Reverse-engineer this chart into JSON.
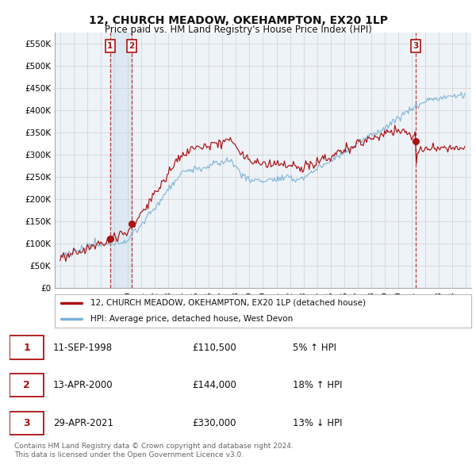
{
  "title": "12, CHURCH MEADOW, OKEHAMPTON, EX20 1LP",
  "subtitle": "Price paid vs. HM Land Registry's House Price Index (HPI)",
  "ylabel_ticks": [
    "£0",
    "£50K",
    "£100K",
    "£150K",
    "£200K",
    "£250K",
    "£300K",
    "£350K",
    "£400K",
    "£450K",
    "£500K",
    "£550K"
  ],
  "ytick_values": [
    0,
    50000,
    100000,
    150000,
    200000,
    250000,
    300000,
    350000,
    400000,
    450000,
    500000,
    550000
  ],
  "ylim": [
    0,
    575000
  ],
  "purchase_years": [
    1998.7,
    2000.3,
    2021.3
  ],
  "purchase_prices": [
    110500,
    144000,
    330000
  ],
  "purchase_labels": [
    "1",
    "2",
    "3"
  ],
  "legend_entries": [
    "12, CHURCH MEADOW, OKEHAMPTON, EX20 1LP (detached house)",
    "HPI: Average price, detached house, West Devon"
  ],
  "table_rows": [
    {
      "num": "1",
      "date": "11-SEP-1998",
      "price": "£110,500",
      "pct": "5% ↑ HPI"
    },
    {
      "num": "2",
      "date": "13-APR-2000",
      "price": "£144,000",
      "pct": "18% ↑ HPI"
    },
    {
      "num": "3",
      "date": "29-APR-2021",
      "price": "£330,000",
      "pct": "13% ↓ HPI"
    }
  ],
  "footer": "Contains HM Land Registry data © Crown copyright and database right 2024.\nThis data is licensed under the Open Government Licence v3.0.",
  "hpi_color": "#7ab0d4",
  "price_color": "#aa1111",
  "bg_color": "#ffffff",
  "grid_color": "#d0d0d0",
  "chart_bg": "#eef3f8"
}
